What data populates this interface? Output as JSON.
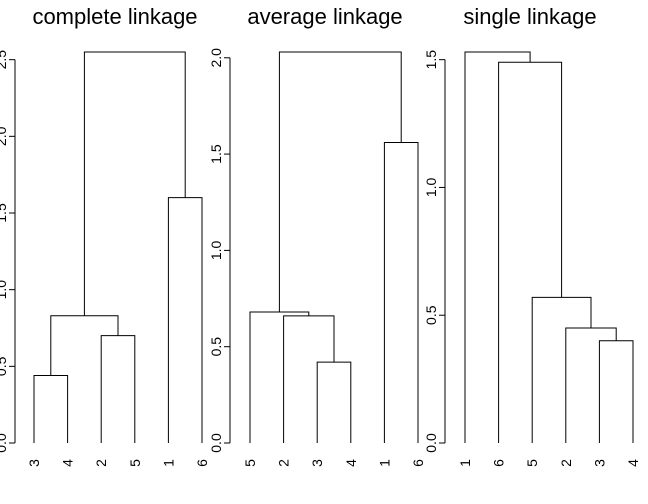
{
  "chart_data": [
    {
      "type": "dendrogram",
      "title": "complete linkage",
      "ylim": [
        0,
        2.55
      ],
      "yticks": [
        0.0,
        0.5,
        1.0,
        1.5,
        2.0,
        2.5
      ],
      "ytick_labels": [
        "0.0",
        "0.5",
        "1.0",
        "1.5",
        "2.0",
        "2.5"
      ],
      "leaf_order": [
        "3",
        "4",
        "2",
        "5",
        "1",
        "6"
      ],
      "merges": [
        {
          "a": "L3",
          "b": "L4",
          "height": 0.44,
          "id": "A"
        },
        {
          "a": "L2",
          "b": "L5",
          "height": 0.7,
          "id": "B"
        },
        {
          "a": "A",
          "b": "B",
          "height": 0.83,
          "id": "C"
        },
        {
          "a": "L1",
          "b": "L6",
          "height": 1.6,
          "id": "D"
        },
        {
          "a": "C",
          "b": "D",
          "height": 2.55,
          "id": "E"
        }
      ]
    },
    {
      "type": "dendrogram",
      "title": "average linkage",
      "ylim": [
        0,
        2.03
      ],
      "yticks": [
        0.0,
        0.5,
        1.0,
        1.5,
        2.0
      ],
      "ytick_labels": [
        "0.0",
        "0.5",
        "1.0",
        "1.5",
        "2.0"
      ],
      "leaf_order": [
        "5",
        "2",
        "3",
        "4",
        "1",
        "6"
      ],
      "merges": [
        {
          "a": "L3",
          "b": "L4",
          "height": 0.42,
          "id": "A"
        },
        {
          "a": "L2",
          "b": "A",
          "height": 0.66,
          "id": "B"
        },
        {
          "a": "L5",
          "b": "B",
          "height": 0.68,
          "id": "C"
        },
        {
          "a": "L1",
          "b": "L6",
          "height": 1.56,
          "id": "D"
        },
        {
          "a": "C",
          "b": "D",
          "height": 2.03,
          "id": "E"
        }
      ]
    },
    {
      "type": "dendrogram",
      "title": "single linkage",
      "ylim": [
        0,
        1.53
      ],
      "yticks": [
        0.0,
        0.5,
        1.0,
        1.5
      ],
      "ytick_labels": [
        "0.0",
        "0.5",
        "1.0",
        "1.5"
      ],
      "leaf_order": [
        "1",
        "6",
        "5",
        "2",
        "3",
        "4"
      ],
      "merges": [
        {
          "a": "L3",
          "b": "L4",
          "height": 0.4,
          "id": "A"
        },
        {
          "a": "L2",
          "b": "A",
          "height": 0.45,
          "id": "B"
        },
        {
          "a": "L5",
          "b": "B",
          "height": 0.57,
          "id": "C"
        },
        {
          "a": "L6",
          "b": "C",
          "height": 1.49,
          "id": "D"
        },
        {
          "a": "L1",
          "b": "D",
          "height": 1.53,
          "id": "E"
        }
      ]
    }
  ]
}
